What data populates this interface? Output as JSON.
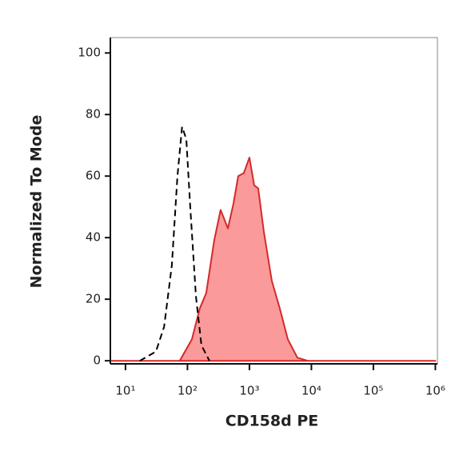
{
  "chart_data": {
    "type": "histogram-overlay",
    "x_label": "CD158d PE",
    "y_label": "Normalized To Mode",
    "xscale": "log",
    "xlim": [
      5.7,
      1080000
    ],
    "xticks": [
      {
        "value": 10,
        "label": "10¹"
      },
      {
        "value": 100,
        "label": "10²"
      },
      {
        "value": 1000,
        "label": "10³"
      },
      {
        "value": 10000,
        "label": "10⁴"
      },
      {
        "value": 100000,
        "label": "10⁵"
      },
      {
        "value": 1000000,
        "label": "10⁶"
      }
    ],
    "ylim": [
      -1,
      105
    ],
    "yticks": [
      0,
      20,
      40,
      60,
      80,
      100
    ],
    "series": [
      {
        "color": "#d42a2a",
        "fill": "#fa9a9a",
        "dashed": false,
        "x": [
          6,
          75,
          118,
          158,
          201,
          270,
          343,
          449,
          552,
          659,
          812,
          1000,
          1194,
          1387,
          1706,
          2297,
          3090,
          4159,
          5943,
          8750,
          1000000
        ],
        "values": [
          0,
          0,
          7,
          17,
          22,
          39,
          49,
          43,
          51,
          60,
          61,
          66,
          57,
          56,
          42,
          26,
          17,
          7,
          1,
          0,
          0
        ]
      },
      {
        "color": "#000000",
        "fill": "none",
        "dashed": true,
        "x": [
          17,
          31,
          42,
          56,
          69,
          82,
          96,
          111,
          137,
          168,
          226
        ],
        "values": [
          0,
          3,
          11,
          31,
          60,
          76,
          72,
          50,
          21,
          5,
          0
        ]
      }
    ]
  }
}
